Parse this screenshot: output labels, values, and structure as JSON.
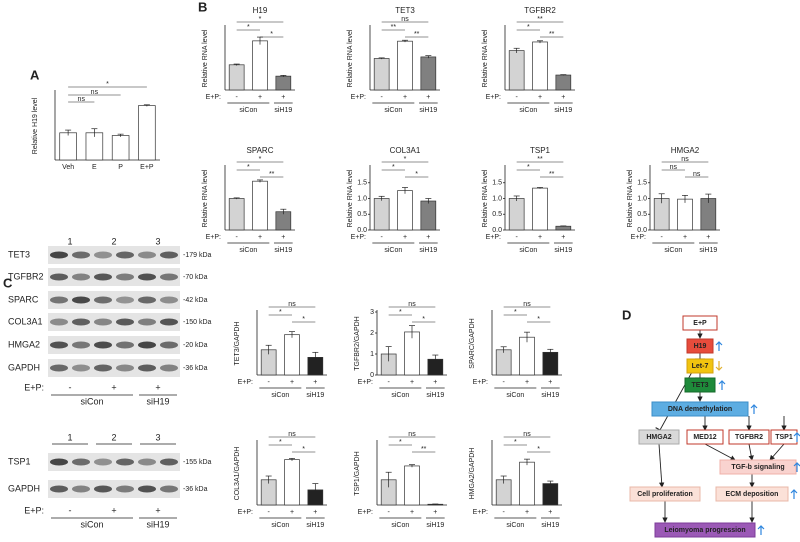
{
  "panel_labels": [
    "A",
    "B",
    "C",
    "D"
  ],
  "chart_data": [
    {
      "type": "bar",
      "ylabel": "Relative H19 level",
      "categories": [
        "Veh",
        "E",
        "P",
        "E+P"
      ],
      "values": [
        1.0,
        1.0,
        0.9,
        2.0
      ],
      "errors": [
        0.1,
        0.15,
        0.05,
        0.03
      ],
      "colors": [
        "#ffffff",
        "#ffffff",
        "#ffffff",
        "#ffffff"
      ],
      "ylim": [
        0,
        2.5
      ],
      "comparisons": [
        "*",
        "ns",
        "ns"
      ]
    },
    {
      "type": "bar",
      "title": "H19",
      "ylabel": "Relative RNA level",
      "condition_label": "E+P:",
      "categories": [
        "-",
        "+",
        "+"
      ],
      "groups": [
        "siCon",
        "siH19"
      ],
      "values": [
        1.0,
        1.95,
        0.55
      ],
      "errors": [
        0.03,
        0.15,
        0.03
      ],
      "colors": [
        "#d3d3d3",
        "#ffffff",
        "#808080"
      ],
      "ylim": [
        0,
        2.5
      ],
      "comparisons": [
        "*",
        "*",
        "*"
      ]
    },
    {
      "type": "bar",
      "title": "TET3",
      "ylabel": "Relative RNA level",
      "condition_label": "E+P:",
      "categories": [
        "-",
        "+",
        "+"
      ],
      "groups": [
        "siCon",
        "siH19"
      ],
      "values": [
        1.0,
        1.55,
        1.05
      ],
      "errors": [
        0.02,
        0.03,
        0.04
      ],
      "colors": [
        "#d3d3d3",
        "#ffffff",
        "#808080"
      ],
      "ylim": [
        0,
        2
      ],
      "comparisons": [
        "ns",
        "**",
        "**"
      ]
    },
    {
      "type": "bar",
      "title": "TGFBR2",
      "ylabel": "Relative RNA level",
      "condition_label": "E+P:",
      "categories": [
        "-",
        "+",
        "+"
      ],
      "groups": [
        "siCon",
        "siH19"
      ],
      "values": [
        1.0,
        1.22,
        0.38
      ],
      "errors": [
        0.06,
        0.03,
        0.01
      ],
      "colors": [
        "#d3d3d3",
        "#ffffff",
        "#808080"
      ],
      "ylim": [
        0,
        1.6
      ],
      "comparisons": [
        "**",
        "*",
        "**"
      ]
    },
    {
      "type": "bar",
      "title": "SPARC",
      "ylabel": "Relative RNA level",
      "condition_label": "E+P:",
      "categories": [
        "-",
        "+",
        "+"
      ],
      "groups": [
        "siCon",
        "siH19"
      ],
      "values": [
        1.0,
        1.55,
        0.58
      ],
      "errors": [
        0.02,
        0.04,
        0.08
      ],
      "colors": [
        "#d3d3d3",
        "#ffffff",
        "#808080"
      ],
      "ylim": [
        0,
        2
      ],
      "comparisons": [
        "*",
        "*",
        "**"
      ]
    },
    {
      "type": "bar",
      "title": "COL3A1",
      "ylabel": "Relative RNA level",
      "condition_label": "E+P:",
      "categories": [
        "-",
        "+",
        "+"
      ],
      "groups": [
        "siCon",
        "siH19"
      ],
      "values": [
        1.0,
        1.25,
        0.92
      ],
      "errors": [
        0.07,
        0.1,
        0.08
      ],
      "colors": [
        "#d3d3d3",
        "#ffffff",
        "#808080"
      ],
      "ylim": [
        0,
        2
      ],
      "yticks": [
        {
          "value": 0,
          "label": "0.0"
        },
        0.5,
        {
          "value": 1,
          "label": "1.0"
        },
        1.5
      ],
      "comparisons": [
        "*",
        "*",
        "*"
      ]
    },
    {
      "type": "bar",
      "title": "TSP1",
      "ylabel": "Relative RNA level",
      "condition_label": "E+P:",
      "categories": [
        "-",
        "+",
        "+"
      ],
      "groups": [
        "siCon",
        "siH19"
      ],
      "values": [
        1.0,
        1.33,
        0.12
      ],
      "errors": [
        0.08,
        0.02,
        0.01
      ],
      "colors": [
        "#d3d3d3",
        "#ffffff",
        "#808080"
      ],
      "ylim": [
        0,
        2
      ],
      "yticks": [
        {
          "value": 0,
          "label": "0.0"
        },
        0.5,
        {
          "value": 1,
          "label": "1.0"
        },
        1.5
      ],
      "comparisons": [
        "**",
        "*",
        "**"
      ]
    },
    {
      "type": "bar",
      "title": "HMGA2",
      "ylabel": "Relative RNA level",
      "condition_label": "E+P:",
      "categories": [
        "-",
        "+",
        "+"
      ],
      "groups": [
        "siCon",
        "siH19"
      ],
      "values": [
        1.0,
        0.98,
        1.0
      ],
      "errors": [
        0.15,
        0.12,
        0.14
      ],
      "colors": [
        "#d3d3d3",
        "#ffffff",
        "#808080"
      ],
      "ylim": [
        0,
        2
      ],
      "yticks": [
        {
          "value": 0,
          "label": "0.0"
        },
        0.5,
        {
          "value": 1,
          "label": "1.0"
        },
        1.5
      ],
      "comparisons": [
        "ns",
        "ns",
        "ns"
      ]
    },
    {
      "type": "bar",
      "ylabel": "TET3/GAPDH",
      "condition_label": "E+P:",
      "categories": [
        "-",
        "+",
        "+"
      ],
      "groups": [
        "siCon",
        "siH19"
      ],
      "values": [
        1.0,
        1.6,
        0.7
      ],
      "errors": [
        0.18,
        0.12,
        0.2
      ],
      "colors": [
        "#d3d3d3",
        "#ffffff",
        "#222222"
      ],
      "ylim": [
        0,
        2.5
      ],
      "comparisons": [
        "ns",
        "*",
        "*"
      ]
    },
    {
      "type": "bar",
      "ylabel": "TGFBR2/GAPDH",
      "condition_label": "E+P:",
      "categories": [
        "-",
        "+",
        "+"
      ],
      "groups": [
        "siCon",
        "siH19"
      ],
      "values": [
        1.0,
        2.05,
        0.75
      ],
      "errors": [
        0.35,
        0.3,
        0.2
      ],
      "colors": [
        "#d3d3d3",
        "#ffffff",
        "#222222"
      ],
      "ylim": [
        0,
        3
      ],
      "yticks": [
        0,
        1,
        2,
        3
      ],
      "comparisons": [
        "ns",
        "*",
        "*"
      ]
    },
    {
      "type": "bar",
      "ylabel": "SPARC/GAPDH",
      "condition_label": "E+P:",
      "categories": [
        "-",
        "+",
        "+"
      ],
      "groups": [
        "siCon",
        "siH19"
      ],
      "values": [
        1.0,
        1.5,
        0.9
      ],
      "errors": [
        0.12,
        0.2,
        0.12
      ],
      "colors": [
        "#d3d3d3",
        "#ffffff",
        "#222222"
      ],
      "ylim": [
        0,
        2.5
      ],
      "comparisons": [
        "ns",
        "*",
        "*"
      ]
    },
    {
      "type": "bar",
      "ylabel": "COL3A1/GAPDH",
      "condition_label": "E+P:",
      "categories": [
        "-",
        "+",
        "+"
      ],
      "groups": [
        "siCon",
        "siH19"
      ],
      "values": [
        1.0,
        1.8,
        0.6
      ],
      "errors": [
        0.15,
        0.05,
        0.25
      ],
      "colors": [
        "#d3d3d3",
        "#ffffff",
        "#222222"
      ],
      "ylim": [
        0,
        2.5
      ],
      "comparisons": [
        "ns",
        "*",
        "*"
      ]
    },
    {
      "type": "bar",
      "ylabel": "TSP1/GAPDH",
      "condition_label": "E+P:",
      "categories": [
        "-",
        "+",
        "+"
      ],
      "groups": [
        "siCon",
        "siH19"
      ],
      "values": [
        1.0,
        1.55,
        0.03
      ],
      "errors": [
        0.3,
        0.05,
        0.01
      ],
      "colors": [
        "#d3d3d3",
        "#ffffff",
        "#222222"
      ],
      "ylim": [
        0,
        2.5
      ],
      "comparisons": [
        "ns",
        "*",
        "**"
      ]
    },
    {
      "type": "bar",
      "ylabel": "HMGA2/GAPDH",
      "condition_label": "E+P:",
      "categories": [
        "-",
        "+",
        "+"
      ],
      "groups": [
        "siCon",
        "siH19"
      ],
      "values": [
        1.0,
        1.7,
        0.85
      ],
      "errors": [
        0.15,
        0.12,
        0.1
      ],
      "colors": [
        "#d3d3d3",
        "#ffffff",
        "#222222"
      ],
      "ylim": [
        0,
        2.5
      ],
      "comparisons": [
        "ns",
        "*",
        "*"
      ]
    }
  ],
  "blots": [
    {
      "lanes": [
        "1",
        "2",
        "3"
      ],
      "rows": [
        {
          "name": "TET3",
          "size": "-179 kDa"
        },
        {
          "name": "TGFBR2",
          "size": "-70 kDa"
        },
        {
          "name": "SPARC",
          "size": "-42 kDa"
        },
        {
          "name": "COL3A1",
          "size": "-150 kDa"
        },
        {
          "name": "HMGA2",
          "size": "-20 kDa"
        },
        {
          "name": "GAPDH",
          "size": "-36 kDa"
        }
      ],
      "condition_label": "E+P:",
      "conditions": [
        "-",
        "+",
        "+"
      ],
      "groups": [
        "siCon",
        "siH19"
      ]
    },
    {
      "lanes": [
        "1",
        "2",
        "3"
      ],
      "rows": [
        {
          "name": "TSP1",
          "size": "-155 kDa"
        },
        {
          "name": "GAPDH",
          "size": "-36 kDa"
        }
      ],
      "condition_label": "E+P:",
      "conditions": [
        "-",
        "+",
        "+"
      ],
      "groups": [
        "siCon",
        "siH19"
      ]
    }
  ],
  "diagram": {
    "nodes": [
      "E+P",
      "H19",
      "Let-7",
      "TET3",
      "DNA demethylation",
      "HMGA2",
      "MED12",
      "TGFBR2",
      "TSP1",
      "TGF-b signaling",
      "Cell proliferation",
      "ECM deposition",
      "Leiomyoma progression"
    ]
  }
}
